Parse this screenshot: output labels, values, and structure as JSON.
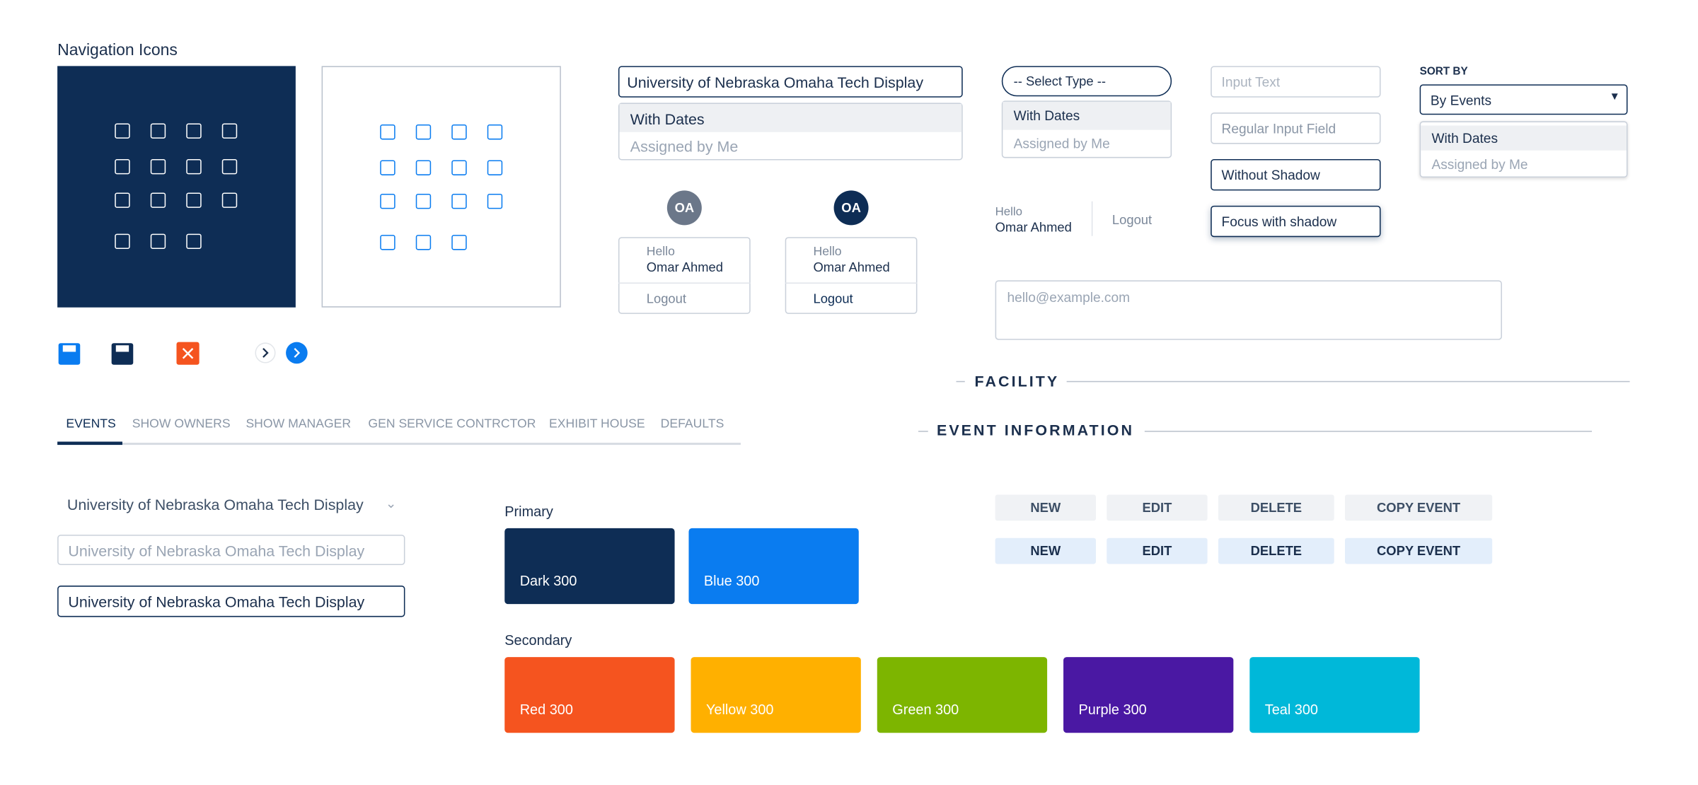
{
  "navigation_icons": {
    "title": "Navigation Icons"
  },
  "dropdown_large": {
    "selected": "University of Nebraska Omaha Tech Display",
    "options": [
      "With Dates",
      "Assigned by Me"
    ]
  },
  "user_cards": [
    {
      "initials": "OA",
      "greeting": "Hello",
      "name": "Omar Ahmed",
      "action": "Logout"
    },
    {
      "initials": "OA",
      "greeting": "Hello",
      "name": "Omar Ahmed",
      "action": "Logout"
    }
  ],
  "select_type": {
    "placeholder": "-- Select Type --",
    "options": [
      "With Dates",
      "Assigned by Me"
    ]
  },
  "user_inline": {
    "greeting": "Hello",
    "name": "Omar Ahmed",
    "action": "Logout"
  },
  "inputs": {
    "input_text": "Input Text",
    "regular": "Regular Input Field",
    "without_shadow": "Without Shadow",
    "focus_shadow": "Focus with shadow",
    "email_placeholder": "hello@example.com"
  },
  "sort_by": {
    "label": "SORT BY",
    "selected": "By Events",
    "options": [
      "With Dates",
      "Assigned by Me"
    ]
  },
  "section_headings": [
    "FACILITY",
    "EVENT INFORMATION"
  ],
  "tabs": [
    "EVENTS",
    "SHOW OWNERS",
    "SHOW MANAGER",
    "GEN SERVICE CONTRCTOR",
    "EXHIBIT HOUSE",
    "DEFAULTS"
  ],
  "select_variants": [
    "University of Nebraska Omaha Tech Display",
    "University of Nebraska Omaha Tech Display",
    "University of Nebraska Omaha Tech Display"
  ],
  "buttons": [
    [
      "NEW",
      "EDIT",
      "DELETE",
      "COPY EVENT"
    ],
    [
      "NEW",
      "EDIT",
      "DELETE",
      "COPY EVENT"
    ]
  ],
  "palette": {
    "primary_label": "Primary",
    "primary": [
      {
        "name": "Dark 300",
        "color": "#0e2d55"
      },
      {
        "name": "Blue 300",
        "color": "#0a7cf0"
      }
    ],
    "secondary_label": "Secondary",
    "secondary": [
      {
        "name": "Red 300",
        "color": "#f5541f"
      },
      {
        "name": "Yellow 300",
        "color": "#ffb000"
      },
      {
        "name": "Green 300",
        "color": "#7db500"
      },
      {
        "name": "Purple 300",
        "color": "#4a18a3"
      },
      {
        "name": "Teal 300",
        "color": "#00b8d9"
      }
    ]
  }
}
